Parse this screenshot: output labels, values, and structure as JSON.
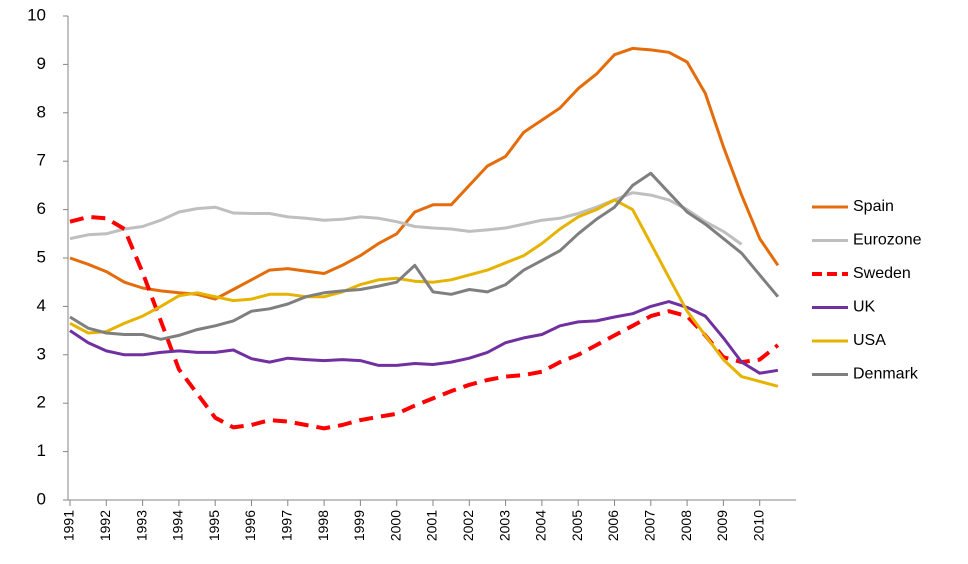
{
  "chart_data": {
    "type": "line",
    "x": [
      1991,
      1991.5,
      1992,
      1992.5,
      1993,
      1993.5,
      1994,
      1994.5,
      1995,
      1995.5,
      1996,
      1996.5,
      1997,
      1997.5,
      1998,
      1998.5,
      1999,
      1999.5,
      2000,
      2000.5,
      2001,
      2001.5,
      2002,
      2002.5,
      2003,
      2003.5,
      2004,
      2004.5,
      2005,
      2005.5,
      2006,
      2006.5,
      2007,
      2007.5,
      2008,
      2008.5,
      2009,
      2009.5,
      2010,
      2010.5
    ],
    "xlim": [
      1991,
      2011
    ],
    "xticks": [
      1991,
      1992,
      1993,
      1994,
      1995,
      1996,
      1997,
      1998,
      1999,
      2000,
      2001,
      2002,
      2003,
      2004,
      2005,
      2006,
      2007,
      2008,
      2009,
      2010
    ],
    "ylim": [
      0,
      10
    ],
    "yticks": [
      0,
      1,
      2,
      3,
      4,
      5,
      6,
      7,
      8,
      9,
      10
    ],
    "series": [
      {
        "name": "Spain",
        "color": "#e46c0a",
        "dash": false,
        "values": [
          5.0,
          4.87,
          4.72,
          4.5,
          4.38,
          4.32,
          4.28,
          4.25,
          4.15,
          4.35,
          4.55,
          4.75,
          4.78,
          4.73,
          4.68,
          4.85,
          5.05,
          5.3,
          5.5,
          5.95,
          6.1,
          6.1,
          6.5,
          6.9,
          7.1,
          7.6,
          7.85,
          8.1,
          8.5,
          8.8,
          9.2,
          9.33,
          9.3,
          9.25,
          9.05,
          8.4,
          7.3,
          6.3,
          5.4,
          4.85
        ]
      },
      {
        "name": "Eurozone",
        "color": "#bfbfbf",
        "dash": false,
        "values": [
          5.4,
          5.48,
          5.5,
          5.6,
          5.65,
          5.78,
          5.95,
          6.02,
          6.05,
          5.93,
          5.92,
          5.92,
          5.85,
          5.82,
          5.78,
          5.8,
          5.85,
          5.82,
          5.75,
          5.65,
          5.62,
          5.6,
          5.55,
          5.58,
          5.62,
          5.7,
          5.78,
          5.82,
          5.92,
          6.05,
          6.2,
          6.35,
          6.3,
          6.2,
          6.0,
          5.75,
          5.55,
          5.28,
          null,
          null
        ]
      },
      {
        "name": "Sweden",
        "color": "#ff0000",
        "dash": true,
        "values": [
          5.75,
          5.85,
          5.82,
          5.6,
          4.7,
          3.7,
          2.7,
          2.2,
          1.7,
          1.5,
          1.55,
          1.65,
          1.62,
          1.55,
          1.48,
          1.55,
          1.65,
          1.72,
          1.78,
          1.95,
          2.1,
          2.25,
          2.38,
          2.48,
          2.55,
          2.58,
          2.65,
          2.85,
          3.0,
          3.2,
          3.4,
          3.6,
          3.8,
          3.9,
          3.8,
          3.4,
          2.95,
          2.85,
          2.9,
          3.2
        ]
      },
      {
        "name": "UK",
        "color": "#7030a0",
        "dash": false,
        "values": [
          3.5,
          3.25,
          3.08,
          3.0,
          3.0,
          3.05,
          3.08,
          3.05,
          3.05,
          3.1,
          2.92,
          2.85,
          2.93,
          2.9,
          2.88,
          2.9,
          2.88,
          2.78,
          2.78,
          2.82,
          2.8,
          2.85,
          2.93,
          3.05,
          3.25,
          3.35,
          3.42,
          3.6,
          3.68,
          3.7,
          3.78,
          3.85,
          4.0,
          4.1,
          3.98,
          3.8,
          3.35,
          2.85,
          2.62,
          2.68
        ]
      },
      {
        "name": "USA",
        "color": "#e6b400",
        "dash": false,
        "values": [
          3.65,
          3.45,
          3.48,
          3.65,
          3.8,
          4.0,
          4.22,
          4.28,
          4.2,
          4.12,
          4.15,
          4.25,
          4.25,
          4.2,
          4.2,
          4.3,
          4.45,
          4.55,
          4.58,
          4.52,
          4.5,
          4.55,
          4.65,
          4.75,
          4.9,
          5.05,
          5.3,
          5.6,
          5.85,
          6.0,
          6.2,
          6.0,
          5.3,
          4.6,
          3.9,
          3.4,
          2.9,
          2.55,
          2.45,
          2.35
        ]
      },
      {
        "name": "Denmark",
        "color": "#7f7f7f",
        "dash": false,
        "values": [
          3.78,
          3.55,
          3.45,
          3.42,
          3.42,
          3.32,
          3.4,
          3.52,
          3.6,
          3.7,
          3.9,
          3.95,
          4.05,
          4.2,
          4.28,
          4.32,
          4.35,
          4.42,
          4.5,
          4.85,
          4.3,
          4.25,
          4.35,
          4.3,
          4.45,
          4.75,
          4.95,
          5.15,
          5.5,
          5.8,
          6.05,
          6.5,
          6.75,
          6.35,
          5.95,
          5.7,
          5.4,
          5.1,
          4.65,
          4.2
        ]
      }
    ]
  }
}
